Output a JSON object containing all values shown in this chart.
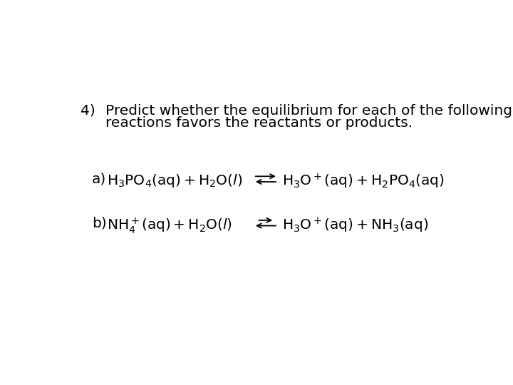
{
  "background_color": "#ffffff",
  "title_number": "4)",
  "title_line1": "Predict whether the equilibrium for each of the following",
  "title_line2": "reactions favors the reactants or products.",
  "reaction_a_label": "a)",
  "reaction_a_left": "$\\mathregular{H_3PO_4(aq) + H_2O(}$$\\it{l}$$\\mathregular{)}$",
  "reaction_a_right": "$\\mathregular{H_3O^+(aq) + H_2PO_4(aq)}$",
  "reaction_b_label": "b)",
  "reaction_b_left": "$\\mathregular{NH_4^+(aq) + H_2O(}$$\\it{l}$$\\mathregular{)}$",
  "reaction_b_right": "$\\mathregular{H_3O^+(aq) + NH_3(aq)}$",
  "font_size_title": 14.5,
  "font_size_reaction": 14.5,
  "text_color": "#000000"
}
